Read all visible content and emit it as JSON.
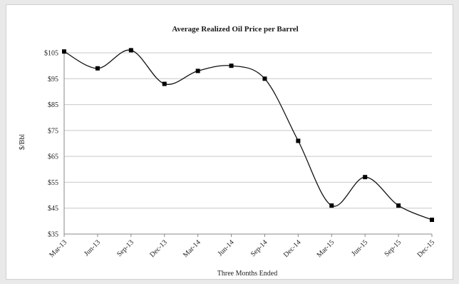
{
  "chart_data": {
    "type": "line",
    "title": "Average Realized Oil Price per Barrel",
    "xlabel": "Three Months Ended",
    "ylabel": "$/Bbl",
    "categories": [
      "Mar-13",
      "Jun-13",
      "Sep-13",
      "Dec-13",
      "Mar-14",
      "Jun-14",
      "Sep-14",
      "Dec-14",
      "Mar-15",
      "Jun-15",
      "Sep-15",
      "Dec-15"
    ],
    "series": [
      {
        "values": [
          105.5,
          99,
          106,
          93,
          98,
          100,
          95,
          71,
          46,
          57,
          46,
          40.5
        ]
      }
    ],
    "ylim": [
      35,
      105
    ],
    "yticks": [
      105,
      95,
      85,
      75,
      65,
      55,
      45,
      35
    ],
    "ytick_labels": [
      "$105",
      "$95",
      "$85",
      "$75",
      "$65",
      "$55",
      "$45",
      "$35"
    ],
    "grid": true,
    "line_color": "#111111",
    "marker_color": "#000000"
  }
}
